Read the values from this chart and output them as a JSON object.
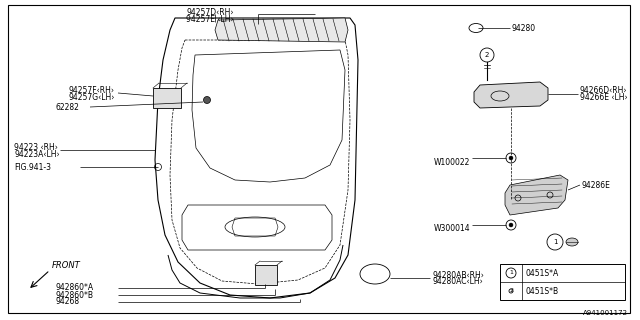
{
  "bg_color": "#ffffff",
  "line_color": "#000000",
  "fig_width": 6.4,
  "fig_height": 3.2,
  "dpi": 100,
  "diagram_code": "A941001172",
  "labels": {
    "94257D_RH": "94257D‹RH›",
    "94257E_LH": "94257E ‹LH›",
    "94257F_RH": "94257F‹RH›",
    "94257G_LH": "94257G‹LH›",
    "62282": "62282",
    "94223_RH": "94223 ‹RH›",
    "94223A_LH": "94223A‹LH›",
    "FIG941_3": "FIG.941-3",
    "94280": "94280",
    "94266D_RH": "94266D‹RH›",
    "94266E_LH": "94266E ‹LH›",
    "W100022": "W100022",
    "94286E": "94286E",
    "W300014": "W300014",
    "94268": "94268",
    "942860B": "942860*B",
    "942860A": "942860*A",
    "94280AB_RH": "94280AB‹RH›",
    "94280AC_LH": "94280AC‹LH›",
    "FRONT": "FRONT",
    "0451SA": "0451S*A",
    "0451SB": "0451S*B"
  }
}
